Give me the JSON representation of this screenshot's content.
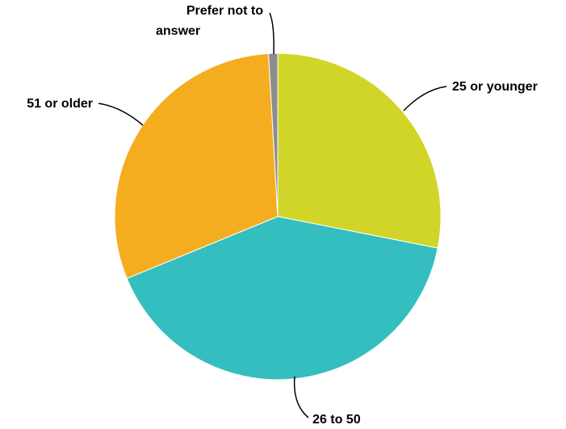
{
  "chart_data": {
    "type": "pie",
    "title": "",
    "slices": [
      {
        "label": "25 or younger",
        "value": 28.1,
        "color": "#D0D528"
      },
      {
        "label": "26 to 50",
        "value": 40.7,
        "color": "#34BEBF"
      },
      {
        "label": "51 or older",
        "value": 30.3,
        "color": "#F5AD20"
      },
      {
        "label": "Prefer not to answer",
        "value": 0.9,
        "color": "#8C8C8C"
      }
    ],
    "label_lines": {
      "prefer_not": [
        "Prefer not to",
        "answer"
      ]
    },
    "start": "12 o'clock",
    "direction": "clockwise",
    "legend": "none"
  }
}
